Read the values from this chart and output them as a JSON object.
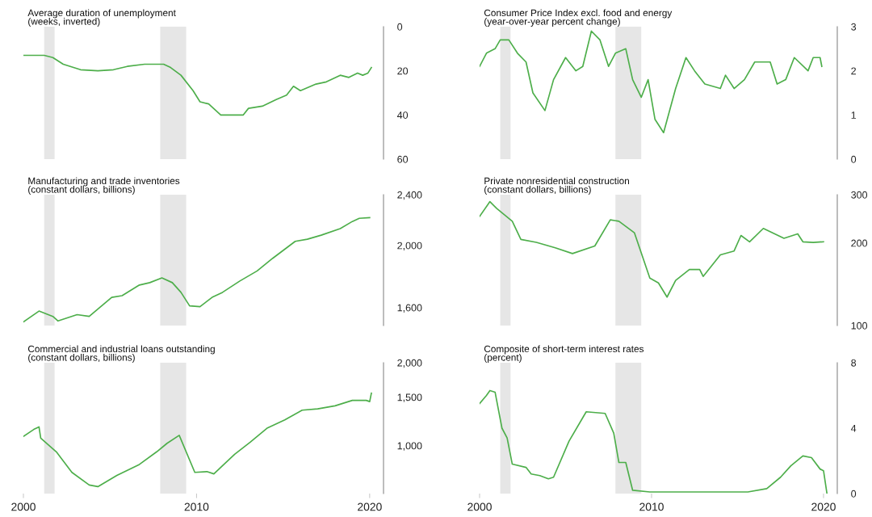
{
  "chart_data": [
    {
      "type": "line",
      "title": "Average duration of unemployment",
      "subtitle": "(weeks, inverted)",
      "tick_labels": "y",
      "xlim": [
        2000,
        2020.8
      ],
      "xticks": [
        2000,
        2010,
        2020
      ],
      "ylim": [
        60,
        0
      ],
      "yticks": [
        0,
        20,
        40,
        60
      ],
      "bands": [
        {
          "axis": "x",
          "from": 2001.2,
          "to": 2001.8,
          "color": "#e6e6e6"
        },
        {
          "axis": "x",
          "from": 2007.9,
          "to": 2009.4,
          "color": "#e6e6e6"
        }
      ],
      "x": [
        2000.0,
        2001.2,
        2001.7,
        2002.3,
        2003.3,
        2004.3,
        2005.2,
        2006.0,
        2007.0,
        2008.1,
        2008.5,
        2009.1,
        2009.8,
        2010.2,
        2010.7,
        2011.4,
        2012.0,
        2012.7,
        2013.0,
        2013.8,
        2014.6,
        2015.2,
        2015.6,
        2016.0,
        2016.9,
        2017.5,
        2018.3,
        2018.8,
        2019.3,
        2019.6,
        2019.9,
        2020.1
      ],
      "series": [
        {
          "color": "#4dae4a",
          "values": [
            13,
            13,
            14,
            17,
            19.5,
            20,
            19.5,
            18,
            17,
            17,
            18.5,
            22,
            29,
            34,
            35,
            40,
            40,
            40,
            37,
            36,
            33,
            31,
            27,
            29,
            26,
            25,
            22,
            23,
            21,
            22,
            21,
            18.5
          ]
        }
      ]
    },
    {
      "type": "line",
      "title": "Consumer Price Index excl. food and energy",
      "subtitle": "(year-over-year percent change)",
      "tick_labels": "y",
      "xlim": [
        2000,
        2020.8
      ],
      "xticks": [
        2000,
        2010,
        2020
      ],
      "ylim": [
        0,
        3
      ],
      "yticks": [
        0,
        1,
        2,
        3
      ],
      "bands": [
        {
          "axis": "x",
          "from": 2001.2,
          "to": 2001.8,
          "color": "#e6e6e6"
        },
        {
          "axis": "x",
          "from": 2007.9,
          "to": 2009.4,
          "color": "#e6e6e6"
        }
      ],
      "x": [
        2000.0,
        2000.4,
        2000.9,
        2001.2,
        2001.7,
        2002.2,
        2002.7,
        2003.1,
        2003.8,
        2004.3,
        2005.0,
        2005.6,
        2006.0,
        2006.5,
        2007.0,
        2007.5,
        2007.9,
        2008.5,
        2008.9,
        2009.4,
        2009.8,
        2010.2,
        2010.7,
        2011.4,
        2012.0,
        2012.5,
        2013.1,
        2014.0,
        2014.3,
        2014.8,
        2015.4,
        2016.0,
        2016.9,
        2017.3,
        2017.8,
        2018.3,
        2019.1,
        2019.4,
        2019.8,
        2019.9
      ],
      "series": [
        {
          "color": "#4dae4a",
          "values": [
            2.1,
            2.4,
            2.5,
            2.7,
            2.7,
            2.4,
            2.2,
            1.5,
            1.1,
            1.8,
            2.3,
            2.0,
            2.1,
            2.9,
            2.7,
            2.1,
            2.4,
            2.5,
            1.8,
            1.4,
            1.8,
            0.9,
            0.6,
            1.6,
            2.3,
            2.0,
            1.7,
            1.6,
            1.9,
            1.6,
            1.8,
            2.2,
            2.2,
            1.7,
            1.8,
            2.3,
            2.0,
            2.3,
            2.3,
            2.1
          ]
        }
      ]
    },
    {
      "type": "line",
      "title": "Manufacturing and trade inventories",
      "subtitle": "(constant dollars, billions)",
      "tick_labels": "y",
      "log": "y",
      "xlim": [
        2000,
        2020.8
      ],
      "xticks": [
        2000,
        2010,
        2020
      ],
      "ylim": [
        1500,
        2400
      ],
      "yticks": [
        {
          "value": 1600,
          "label": "1,600"
        },
        {
          "value": 2000,
          "label": "2,000"
        },
        {
          "value": 2400,
          "label": "2,400"
        }
      ],
      "bands": [
        {
          "axis": "x",
          "from": 2001.2,
          "to": 2001.8,
          "color": "#e6e6e6"
        },
        {
          "axis": "x",
          "from": 2007.9,
          "to": 2009.4,
          "color": "#e6e6e6"
        }
      ],
      "x": [
        2000.0,
        2000.9,
        2001.7,
        2002.0,
        2003.1,
        2003.8,
        2005.1,
        2005.7,
        2006.7,
        2007.3,
        2008.0,
        2008.6,
        2009.1,
        2009.6,
        2010.2,
        2010.9,
        2011.5,
        2012.5,
        2013.5,
        2014.4,
        2015.7,
        2016.4,
        2017.2,
        2018.3,
        2019.0,
        2019.4,
        2020.0
      ],
      "series": [
        {
          "color": "#4dae4a",
          "values": [
            1520,
            1580,
            1550,
            1525,
            1560,
            1550,
            1660,
            1670,
            1735,
            1750,
            1780,
            1750,
            1690,
            1610,
            1605,
            1660,
            1690,
            1760,
            1825,
            1910,
            2030,
            2045,
            2075,
            2125,
            2180,
            2205,
            2210
          ]
        }
      ]
    },
    {
      "type": "line",
      "title": "Private nonresidential construction",
      "subtitle": "(constant dollars, billions)",
      "tick_labels": "y",
      "log": "y",
      "xlim": [
        2000,
        2020.8
      ],
      "xticks": [
        2000,
        2010,
        2020
      ],
      "ylim": [
        100,
        300
      ],
      "yticks": [
        100,
        200,
        300
      ],
      "bands": [
        {
          "axis": "x",
          "from": 2001.2,
          "to": 2001.8,
          "color": "#e6e6e6"
        },
        {
          "axis": "x",
          "from": 2007.9,
          "to": 2009.4,
          "color": "#e6e6e6"
        }
      ],
      "x": [
        2000.0,
        2000.6,
        2001.0,
        2001.9,
        2002.4,
        2003.3,
        2004.4,
        2005.4,
        2006.7,
        2007.6,
        2008.1,
        2009.0,
        2009.9,
        2010.4,
        2010.9,
        2011.4,
        2012.2,
        2012.8,
        2013.0,
        2014.0,
        2014.8,
        2015.2,
        2015.7,
        2016.5,
        2017.7,
        2018.5,
        2018.8,
        2019.4,
        2020.0
      ],
      "series": [
        {
          "color": "#4dae4a",
          "values": [
            250,
            283,
            267,
            240,
            206,
            201,
            192,
            183,
            195,
            243,
            240,
            218,
            149,
            143,
            127,
            146,
            160,
            160,
            151,
            181,
            187,
            213,
            202,
            226,
            208,
            216,
            202,
            201,
            202
          ]
        }
      ]
    },
    {
      "type": "line",
      "title": "Commercial and industrial loans outstanding",
      "subtitle": "(constant dollars, billions)",
      "log": "y",
      "xlim": [
        2000,
        2020.8
      ],
      "xticks": [
        2000,
        2010,
        2020
      ],
      "ylim": [
        670,
        2000
      ],
      "yticks": [
        {
          "value": 1000,
          "label": "1,000"
        },
        {
          "value": 1500,
          "label": "1,500"
        },
        {
          "value": 2000,
          "label": "2,000"
        }
      ],
      "bands": [
        {
          "axis": "x",
          "from": 2001.2,
          "to": 2001.8,
          "color": "#e6e6e6"
        },
        {
          "axis": "x",
          "from": 2007.9,
          "to": 2009.4,
          "color": "#e6e6e6"
        }
      ],
      "x": [
        2000.0,
        2000.6,
        2000.9,
        2001.0,
        2001.9,
        2002.8,
        2003.8,
        2004.3,
        2005.4,
        2006.7,
        2007.7,
        2008.3,
        2009.0,
        2009.9,
        2010.6,
        2011.0,
        2012.2,
        2013.1,
        2014.1,
        2015.1,
        2016.1,
        2017.0,
        2018.0,
        2019.0,
        2019.8,
        2020.0,
        2020.1
      ],
      "series": [
        {
          "color": "#4dae4a",
          "values": [
            1080,
            1145,
            1170,
            1065,
            950,
            800,
            720,
            710,
            780,
            855,
            950,
            1020,
            1090,
            800,
            805,
            790,
            930,
            1030,
            1160,
            1240,
            1345,
            1360,
            1395,
            1460,
            1460,
            1445,
            1550
          ]
        }
      ]
    },
    {
      "type": "line",
      "title": "Composite of short-term interest rates",
      "subtitle": "(percent)",
      "xlim": [
        2000,
        2020.8
      ],
      "xticks": [
        2000,
        2010,
        2020
      ],
      "ylim": [
        0,
        8
      ],
      "yticks": [
        0,
        4,
        8
      ],
      "bands": [
        {
          "axis": "x",
          "from": 2001.2,
          "to": 2001.8,
          "color": "#e6e6e6"
        },
        {
          "axis": "x",
          "from": 2007.9,
          "to": 2009.4,
          "color": "#e6e6e6"
        }
      ],
      "x": [
        2000.0,
        2000.4,
        2000.6,
        2000.9,
        2001.3,
        2001.6,
        2001.9,
        2002.7,
        2003.0,
        2003.5,
        2004.0,
        2004.3,
        2005.2,
        2006.2,
        2007.3,
        2007.8,
        2008.1,
        2008.5,
        2008.9,
        2009.9,
        2015.6,
        2016.7,
        2017.5,
        2018.1,
        2018.8,
        2019.3,
        2019.8,
        2020.0,
        2020.2
      ],
      "series": [
        {
          "color": "#4dae4a",
          "values": [
            5.5,
            6.0,
            6.3,
            6.2,
            4.0,
            3.4,
            1.8,
            1.6,
            1.2,
            1.1,
            0.9,
            1.0,
            3.2,
            5.0,
            4.9,
            3.7,
            1.9,
            1.9,
            0.2,
            0.1,
            0.1,
            0.3,
            1.0,
            1.7,
            2.3,
            2.2,
            1.5,
            1.4,
            0.0
          ]
        }
      ]
    }
  ]
}
